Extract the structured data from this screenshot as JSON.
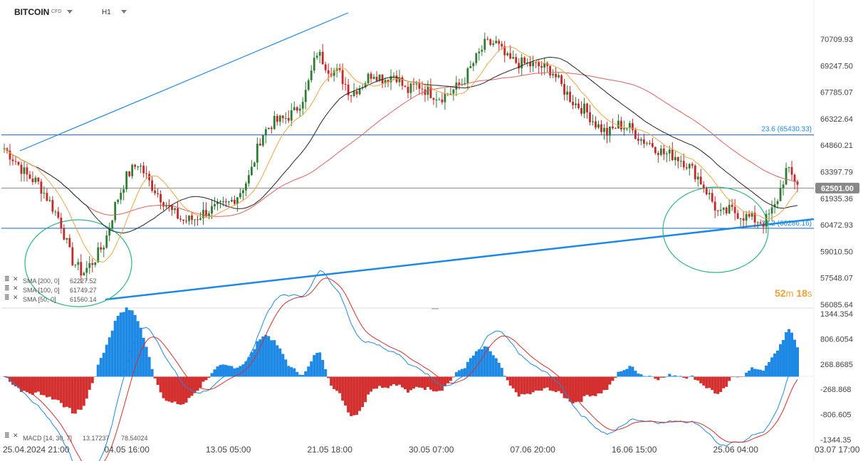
{
  "header": {
    "symbol": "BITCOIN",
    "instrument_type": "CFD",
    "timeframe": "H1"
  },
  "countdown": {
    "minutes": "52",
    "minutes_unit": "m",
    "seconds": "18",
    "seconds_unit": "s"
  },
  "colors": {
    "up": "#2e7d32",
    "down": "#c62828",
    "sma200": "#e06060",
    "sma100": "#222222",
    "sma50": "#f2a541",
    "trendline": "#1e88e5",
    "ellipse": "#2bb58a",
    "macd_pos": "#1e88e5",
    "macd_neg": "#d32f2f"
  },
  "icons": [
    "menu-lines-icon",
    "close-icon",
    "chevron-down-icon"
  ],
  "chart_data": [
    {
      "type": "candlestick",
      "price_axis_ticks": [
        "70709.93",
        "69247.50",
        "67785.07",
        "66322.64",
        "64860.21",
        "63397.79",
        "61935.36",
        "60472.93",
        "59010.50",
        "57548.07",
        "56085.64"
      ],
      "ylim": [
        56085.64,
        70709.93
      ],
      "last_price": "62501.00",
      "x_axis_ticks": [
        "25.04.2024 21:00",
        "04.05 16:00",
        "13.05 05:00",
        "21.05 18:00",
        "30.05 07:00",
        "07.06 20:00",
        "16.06 15:00",
        "25.06 04:00",
        "03.07 17:00"
      ],
      "fibonacci_levels": [
        {
          "label": "23.6 (65430.33)",
          "value": 65430.33
        },
        {
          "label": "38.2 (60286.16)",
          "value": 60286.16
        }
      ],
      "indicators_legend": [
        {
          "label": "SMA [200, 0]",
          "value": "62227.52"
        },
        {
          "label": "SMA [100, 0]",
          "value": "61749.27"
        },
        {
          "label": "SMA [50, 0]",
          "value": "61560.14"
        }
      ],
      "close_series": [
        64700,
        64000,
        63200,
        62800,
        61800,
        60700,
        58600,
        57800,
        58500,
        59500,
        61700,
        63200,
        63900,
        62800,
        62000,
        61200,
        60700,
        60800,
        61200,
        61400,
        61600,
        62200,
        63200,
        65400,
        66100,
        66300,
        66700,
        67800,
        70000,
        69100,
        68800,
        67700,
        68200,
        68900,
        68500,
        68800,
        67800,
        68200,
        67800,
        67500,
        67800,
        68300,
        69400,
        70400,
        70500,
        69600,
        69400,
        69300,
        69200,
        69000,
        68000,
        67200,
        66800,
        66000,
        65500,
        66000,
        65800,
        65200,
        64900,
        64400,
        64300,
        63900,
        63200,
        62200,
        61000,
        61300,
        61000,
        60800,
        60600,
        61500,
        63500,
        62800
      ]
    },
    {
      "type": "macd",
      "label": "MACD [14, 30, 7]",
      "values_text": [
        "13.17237",
        "78.54024"
      ],
      "axis_ticks": [
        "1344.354",
        "806.6054",
        "268.8685",
        "-268.868",
        "-806.605",
        "-1344.35"
      ],
      "ylim": [
        -1344.354,
        1344.354
      ]
    }
  ]
}
